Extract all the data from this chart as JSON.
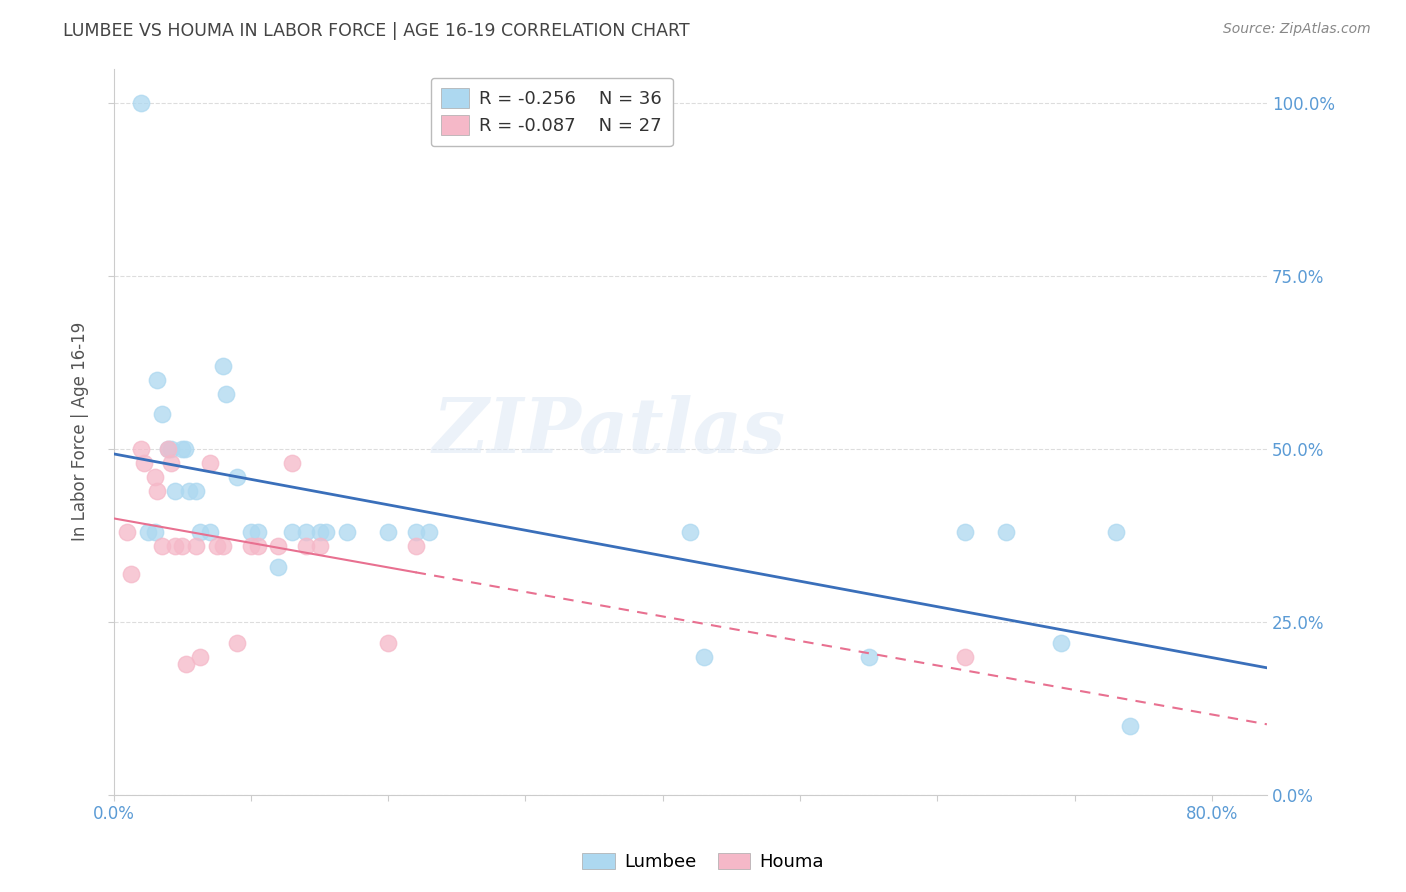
{
  "title": "LUMBEE VS HOUMA IN LABOR FORCE | AGE 16-19 CORRELATION CHART",
  "source": "Source: ZipAtlas.com",
  "ylabel": "In Labor Force | Age 16-19",
  "lumbee_r": -0.256,
  "lumbee_n": 36,
  "houma_r": -0.087,
  "houma_n": 27,
  "lumbee_color": "#add8f0",
  "houma_color": "#f5b8c8",
  "lumbee_line_color": "#3a6fba",
  "houma_line_color": "#e87090",
  "watermark_text": "ZIPatlas",
  "lumbee_x": [
    0.02,
    0.025,
    0.03,
    0.032,
    0.035,
    0.04,
    0.042,
    0.045,
    0.05,
    0.052,
    0.055,
    0.06,
    0.063,
    0.07,
    0.08,
    0.082,
    0.09,
    0.1,
    0.105,
    0.12,
    0.13,
    0.14,
    0.15,
    0.155,
    0.17,
    0.2,
    0.22,
    0.23,
    0.42,
    0.43,
    0.55,
    0.62,
    0.65,
    0.69,
    0.73,
    0.74
  ],
  "lumbee_y": [
    1.0,
    0.38,
    0.38,
    0.6,
    0.55,
    0.5,
    0.5,
    0.44,
    0.5,
    0.5,
    0.44,
    0.44,
    0.38,
    0.38,
    0.62,
    0.58,
    0.46,
    0.38,
    0.38,
    0.33,
    0.38,
    0.38,
    0.38,
    0.38,
    0.38,
    0.38,
    0.38,
    0.38,
    0.38,
    0.2,
    0.2,
    0.38,
    0.38,
    0.22,
    0.38,
    0.1
  ],
  "houma_x": [
    0.01,
    0.013,
    0.02,
    0.022,
    0.03,
    0.032,
    0.035,
    0.04,
    0.042,
    0.045,
    0.05,
    0.053,
    0.06,
    0.063,
    0.07,
    0.075,
    0.08,
    0.09,
    0.1,
    0.105,
    0.12,
    0.13,
    0.14,
    0.15,
    0.2,
    0.22,
    0.62
  ],
  "houma_y": [
    0.38,
    0.32,
    0.5,
    0.48,
    0.46,
    0.44,
    0.36,
    0.5,
    0.48,
    0.36,
    0.36,
    0.19,
    0.36,
    0.2,
    0.48,
    0.36,
    0.36,
    0.22,
    0.36,
    0.36,
    0.36,
    0.48,
    0.36,
    0.36,
    0.22,
    0.36,
    0.2
  ],
  "xlim": [
    0.0,
    0.84
  ],
  "ylim": [
    0.0,
    1.05
  ],
  "y_tick_vals": [
    0.0,
    0.25,
    0.5,
    0.75,
    1.0
  ],
  "y_tick_labels": [
    "0.0%",
    "25.0%",
    "50.0%",
    "75.0%",
    "100.0%"
  ],
  "x_tick_vals": [
    0.0,
    0.1,
    0.2,
    0.3,
    0.4,
    0.5,
    0.6,
    0.7,
    0.8
  ],
  "x_tick_labels": [
    "0.0%",
    "",
    "",
    "",
    "",
    "",
    "",
    "",
    "80.0%"
  ],
  "background_color": "#ffffff",
  "grid_color": "#dddddd",
  "title_color": "#444444",
  "tick_color": "#5b9bd5"
}
